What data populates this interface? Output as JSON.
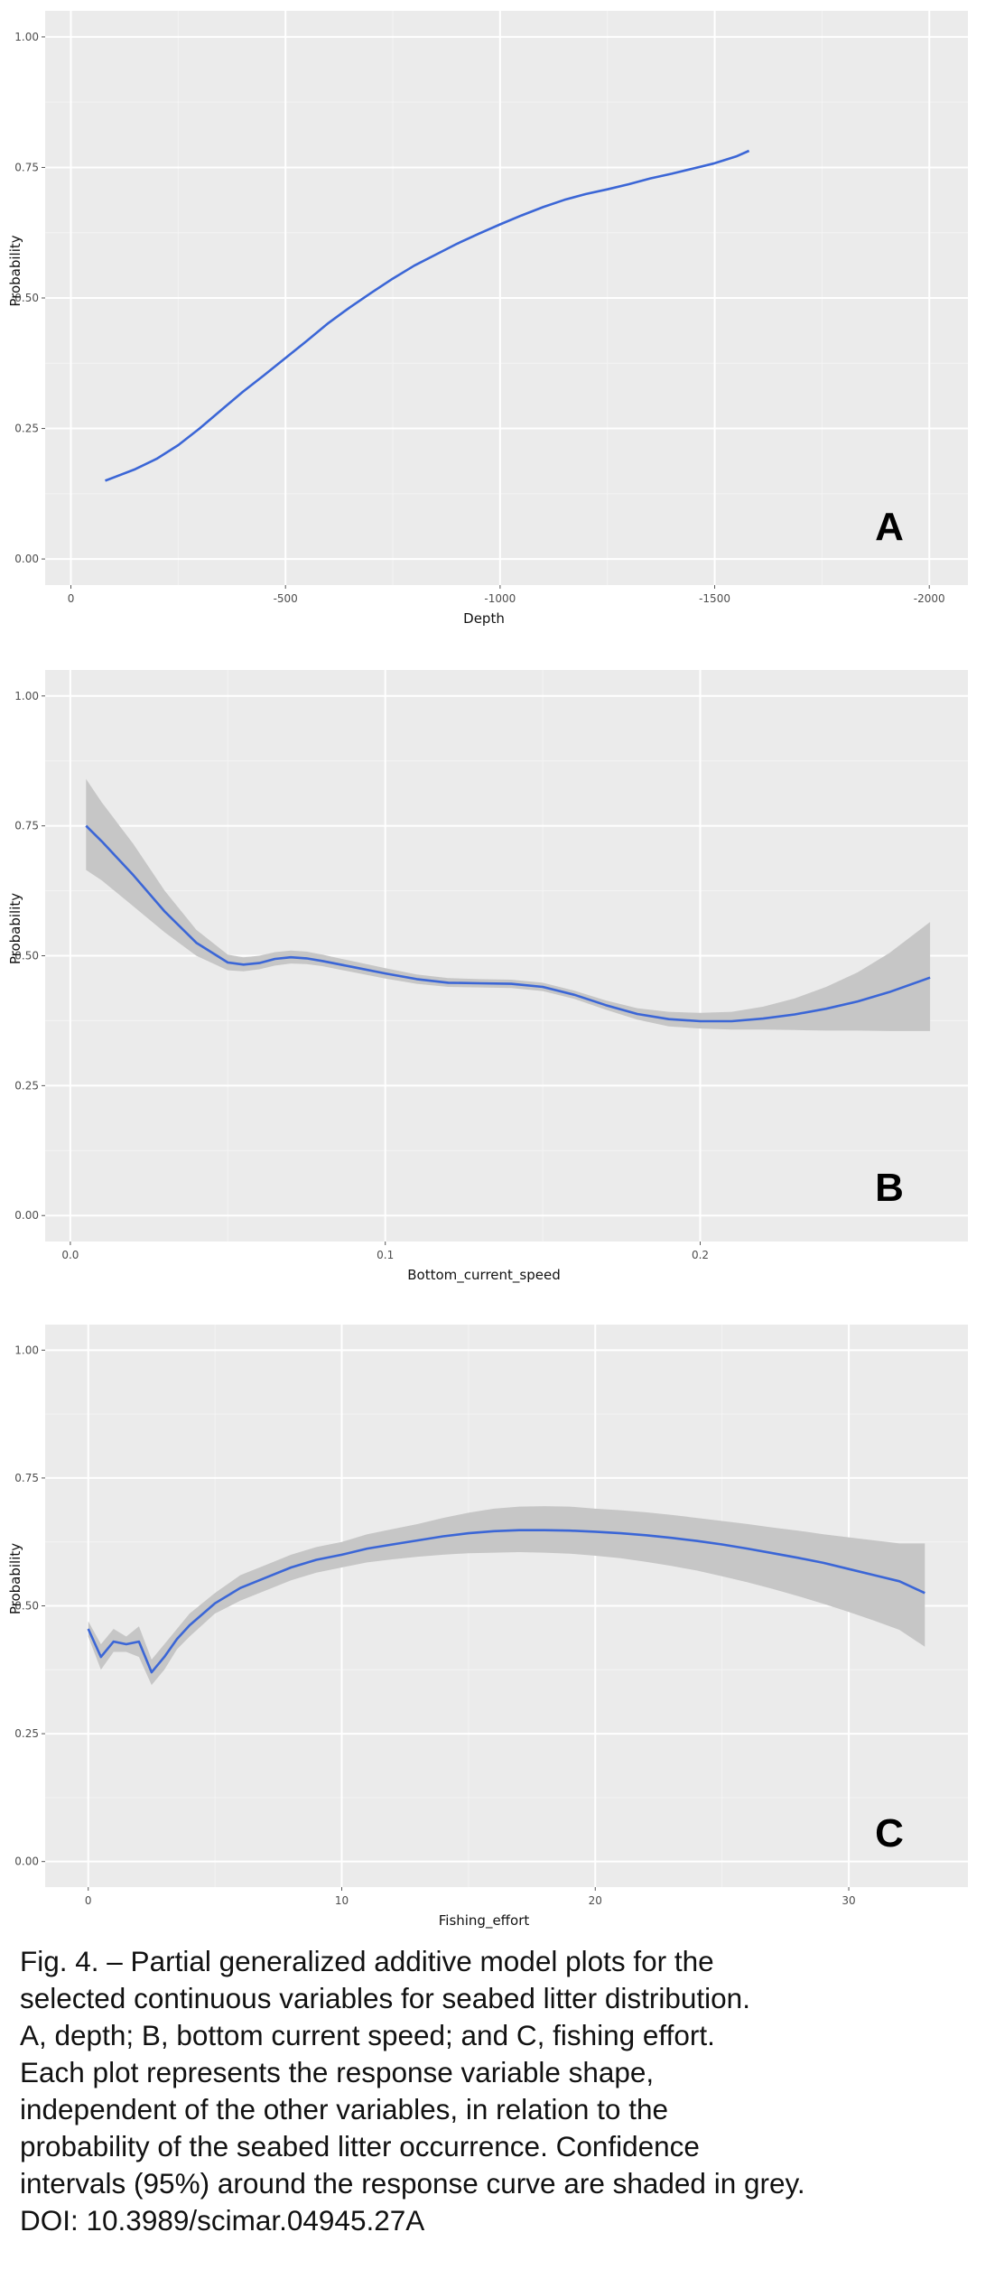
{
  "chart_data": [
    {
      "type": "line",
      "xlabel": "Depth",
      "ylabel": "Probability",
      "panel_label": "A",
      "xlim": [
        60,
        -2090
      ],
      "ylim": [
        -0.05,
        1.05
      ],
      "xticks": [
        0,
        -500,
        -1000,
        -1500,
        -2000
      ],
      "xtick_labels": [
        "0",
        "-500",
        "-1000",
        "-1500",
        "-2000"
      ],
      "yticks": [
        0,
        0.25,
        0.5,
        0.75,
        1.0
      ],
      "ytick_labels": [
        "0.00",
        "0.25",
        "0.50",
        "0.75",
        "1.00"
      ],
      "grid": true,
      "confidence_band": false,
      "series": [
        {
          "x": [
            -80,
            -150,
            -200,
            -250,
            -300,
            -350,
            -400,
            -450,
            -500,
            -550,
            -600,
            -650,
            -700,
            -750,
            -800,
            -850,
            -900,
            -950,
            -1000,
            -1050,
            -1100,
            -1150,
            -1200,
            -1250,
            -1300,
            -1350,
            -1400,
            -1450,
            -1500,
            -1550,
            -1580
          ],
          "y": [
            0.15,
            0.172,
            0.192,
            0.218,
            0.25,
            0.285,
            0.32,
            0.352,
            0.385,
            0.418,
            0.452,
            0.482,
            0.51,
            0.537,
            0.562,
            0.583,
            0.604,
            0.623,
            0.641,
            0.658,
            0.674,
            0.688,
            0.699,
            0.708,
            0.718,
            0.729,
            0.738,
            0.748,
            0.758,
            0.771,
            0.782
          ]
        }
      ]
    },
    {
      "type": "line",
      "xlabel": "Bottom_current_speed",
      "ylabel": "Probability",
      "panel_label": "B",
      "xlim": [
        -0.008,
        0.285
      ],
      "ylim": [
        -0.05,
        1.05
      ],
      "xticks": [
        0,
        0.1,
        0.2
      ],
      "xtick_labels": [
        "0.0",
        "0.1",
        "0.2"
      ],
      "yticks": [
        0,
        0.25,
        0.5,
        0.75,
        1.0
      ],
      "ytick_labels": [
        "0.00",
        "0.25",
        "0.50",
        "0.75",
        "1.00"
      ],
      "grid": true,
      "confidence_band": true,
      "series": [
        {
          "x": [
            0.005,
            0.01,
            0.02,
            0.03,
            0.04,
            0.05,
            0.055,
            0.06,
            0.065,
            0.07,
            0.075,
            0.08,
            0.09,
            0.1,
            0.11,
            0.12,
            0.13,
            0.14,
            0.15,
            0.16,
            0.17,
            0.18,
            0.19,
            0.2,
            0.21,
            0.22,
            0.23,
            0.24,
            0.25,
            0.26,
            0.273
          ],
          "y": [
            0.75,
            0.72,
            0.655,
            0.585,
            0.525,
            0.487,
            0.483,
            0.486,
            0.494,
            0.497,
            0.495,
            0.49,
            0.478,
            0.466,
            0.455,
            0.448,
            0.447,
            0.446,
            0.44,
            0.425,
            0.405,
            0.388,
            0.378,
            0.374,
            0.374,
            0.379,
            0.387,
            0.398,
            0.412,
            0.43,
            0.458
          ],
          "lower": [
            0.665,
            0.645,
            0.595,
            0.545,
            0.5,
            0.472,
            0.47,
            0.474,
            0.481,
            0.485,
            0.484,
            0.48,
            0.468,
            0.456,
            0.446,
            0.44,
            0.439,
            0.438,
            0.432,
            0.417,
            0.396,
            0.377,
            0.364,
            0.36,
            0.358,
            0.358,
            0.357,
            0.356,
            0.356,
            0.355,
            0.355
          ],
          "upper": [
            0.84,
            0.795,
            0.715,
            0.625,
            0.55,
            0.502,
            0.497,
            0.5,
            0.507,
            0.51,
            0.508,
            0.502,
            0.489,
            0.476,
            0.464,
            0.457,
            0.455,
            0.454,
            0.448,
            0.433,
            0.414,
            0.399,
            0.392,
            0.39,
            0.392,
            0.402,
            0.418,
            0.44,
            0.468,
            0.505,
            0.565
          ]
        }
      ]
    },
    {
      "type": "line",
      "xlabel": "Fishing_effort",
      "ylabel": "Probability",
      "panel_label": "C",
      "xlim": [
        -1.7,
        34.7
      ],
      "ylim": [
        -0.05,
        1.05
      ],
      "xticks": [
        0,
        10,
        20,
        30
      ],
      "xtick_labels": [
        "0",
        "10",
        "20",
        "30"
      ],
      "yticks": [
        0,
        0.25,
        0.5,
        0.75,
        1.0
      ],
      "ytick_labels": [
        "0.00",
        "0.25",
        "0.50",
        "0.75",
        "1.00"
      ],
      "grid": true,
      "confidence_band": true,
      "series": [
        {
          "x": [
            0,
            0.5,
            1,
            1.5,
            2,
            2.5,
            3,
            3.5,
            4,
            5,
            6,
            7,
            8,
            9,
            10,
            11,
            12,
            13,
            14,
            15,
            16,
            17,
            18,
            19,
            20,
            21,
            22,
            23,
            24,
            25,
            26,
            27,
            28,
            29,
            30,
            31,
            32,
            33
          ],
          "y": [
            0.455,
            0.4,
            0.43,
            0.425,
            0.43,
            0.37,
            0.4,
            0.435,
            0.462,
            0.505,
            0.535,
            0.555,
            0.575,
            0.59,
            0.6,
            0.612,
            0.62,
            0.628,
            0.636,
            0.642,
            0.646,
            0.648,
            0.648,
            0.647,
            0.645,
            0.642,
            0.638,
            0.633,
            0.627,
            0.62,
            0.612,
            0.603,
            0.594,
            0.584,
            0.572,
            0.56,
            0.548,
            0.525
          ],
          "lower": [
            0.44,
            0.375,
            0.41,
            0.41,
            0.4,
            0.345,
            0.375,
            0.415,
            0.44,
            0.485,
            0.51,
            0.53,
            0.55,
            0.565,
            0.575,
            0.585,
            0.591,
            0.596,
            0.6,
            0.603,
            0.604,
            0.605,
            0.604,
            0.602,
            0.598,
            0.593,
            0.586,
            0.578,
            0.569,
            0.558,
            0.546,
            0.533,
            0.519,
            0.504,
            0.488,
            0.471,
            0.453,
            0.42
          ],
          "upper": [
            0.47,
            0.425,
            0.455,
            0.44,
            0.46,
            0.395,
            0.425,
            0.455,
            0.485,
            0.525,
            0.56,
            0.58,
            0.6,
            0.615,
            0.625,
            0.64,
            0.65,
            0.66,
            0.672,
            0.682,
            0.69,
            0.694,
            0.695,
            0.694,
            0.69,
            0.687,
            0.683,
            0.678,
            0.672,
            0.666,
            0.66,
            0.653,
            0.647,
            0.64,
            0.634,
            0.628,
            0.622,
            0.622
          ]
        }
      ]
    }
  ],
  "caption": {
    "lines": [
      "Fig. 4. – Partial generalized additive model plots for the",
      "selected continuous variables for seabed litter distribution.",
      "A, depth; B, bottom current speed; and C, fishing effort.",
      "Each plot represents the response variable shape,",
      "independent of the other variables, in relation to the",
      "probability of the seabed litter occurrence. Confidence",
      "intervals (95%) around the response curve are shaded in grey.",
      "DOI: 10.3989/scimar.04945.27A"
    ]
  },
  "colors": {
    "panel_background": "#ebebeb",
    "grid_major": "#ffffff",
    "line": "#3b66d6",
    "band": "#c6c6c6"
  }
}
